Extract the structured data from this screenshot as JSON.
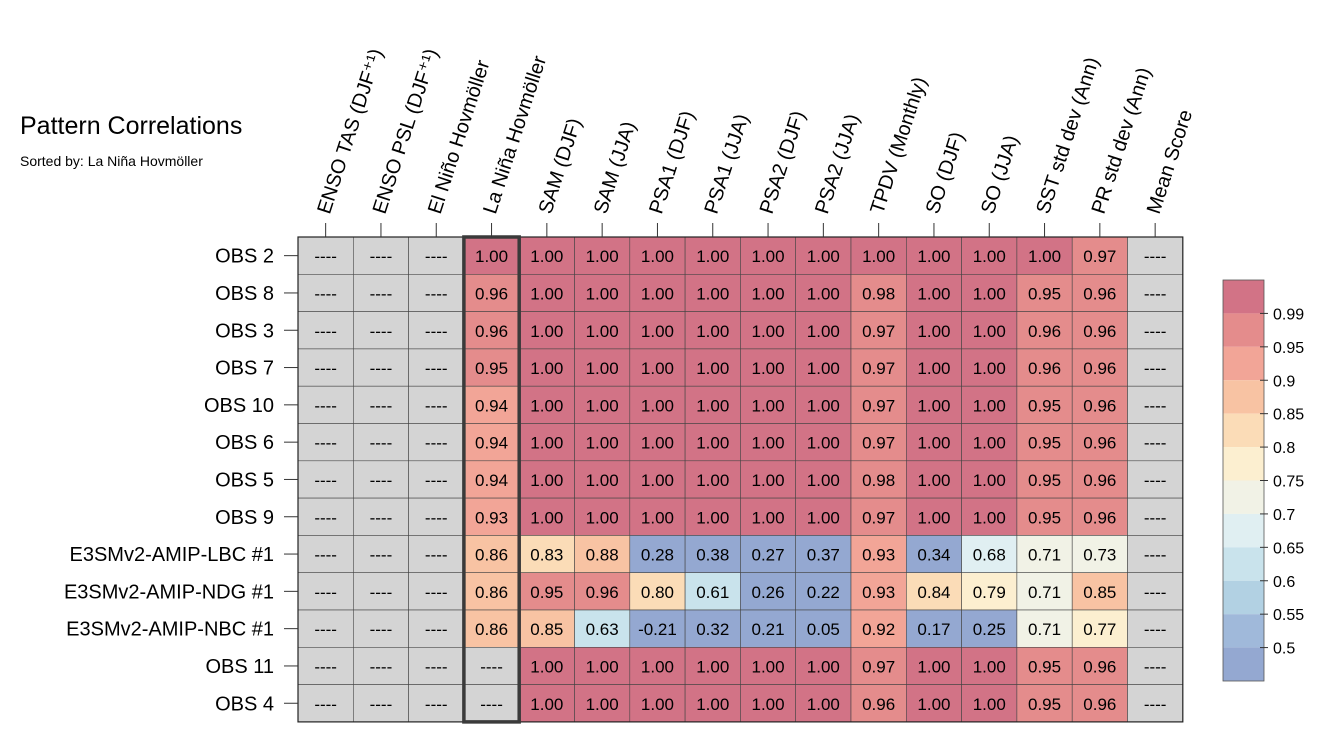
{
  "title": "Pattern Correlations",
  "subtitle": "Sorted by: La Niña Hovmöller",
  "chart_data": {
    "type": "heatmap",
    "title": "Pattern Correlations",
    "subtitle": "Sorted by: La Niña Hovmöller",
    "sorted_by": "La Niña Hovmöller",
    "missing_label": "----",
    "highlight_column": "La Niña Hovmöller",
    "columns": [
      "ENSO TAS (DJF⁺¹)",
      "ENSO PSL (DJF⁺¹)",
      "El Niño Hovmöller",
      "La Niña Hovmöller",
      "SAM (DJF)",
      "SAM (JJA)",
      "PSA1 (DJF)",
      "PSA1 (JJA)",
      "PSA2 (DJF)",
      "PSA2 (JJA)",
      "TPDV (Monthly)",
      "SO (DJF)",
      "SO (JJA)",
      "SST std dev (Ann)",
      "PR std dev (Ann)",
      "Mean Score"
    ],
    "rows": [
      {
        "name": "OBS 2",
        "values": [
          null,
          null,
          null,
          1.0,
          1.0,
          1.0,
          1.0,
          1.0,
          1.0,
          1.0,
          1.0,
          1.0,
          1.0,
          1.0,
          0.97,
          null
        ]
      },
      {
        "name": "OBS 8",
        "values": [
          null,
          null,
          null,
          0.96,
          1.0,
          1.0,
          1.0,
          1.0,
          1.0,
          1.0,
          0.98,
          1.0,
          1.0,
          0.95,
          0.96,
          null
        ]
      },
      {
        "name": "OBS 3",
        "values": [
          null,
          null,
          null,
          0.96,
          1.0,
          1.0,
          1.0,
          1.0,
          1.0,
          1.0,
          0.97,
          1.0,
          1.0,
          0.96,
          0.96,
          null
        ]
      },
      {
        "name": "OBS 7",
        "values": [
          null,
          null,
          null,
          0.95,
          1.0,
          1.0,
          1.0,
          1.0,
          1.0,
          1.0,
          0.97,
          1.0,
          1.0,
          0.96,
          0.96,
          null
        ]
      },
      {
        "name": "OBS 10",
        "values": [
          null,
          null,
          null,
          0.94,
          1.0,
          1.0,
          1.0,
          1.0,
          1.0,
          1.0,
          0.97,
          1.0,
          1.0,
          0.95,
          0.96,
          null
        ]
      },
      {
        "name": "OBS 6",
        "values": [
          null,
          null,
          null,
          0.94,
          1.0,
          1.0,
          1.0,
          1.0,
          1.0,
          1.0,
          0.97,
          1.0,
          1.0,
          0.95,
          0.96,
          null
        ]
      },
      {
        "name": "OBS 5",
        "values": [
          null,
          null,
          null,
          0.94,
          1.0,
          1.0,
          1.0,
          1.0,
          1.0,
          1.0,
          0.98,
          1.0,
          1.0,
          0.95,
          0.96,
          null
        ]
      },
      {
        "name": "OBS 9",
        "values": [
          null,
          null,
          null,
          0.93,
          1.0,
          1.0,
          1.0,
          1.0,
          1.0,
          1.0,
          0.97,
          1.0,
          1.0,
          0.95,
          0.96,
          null
        ]
      },
      {
        "name": "E3SMv2-AMIP-LBC #1",
        "values": [
          null,
          null,
          null,
          0.86,
          0.83,
          0.88,
          0.28,
          0.38,
          0.27,
          0.37,
          0.93,
          0.34,
          0.68,
          0.71,
          0.73,
          null
        ]
      },
      {
        "name": "E3SMv2-AMIP-NDG #1",
        "values": [
          null,
          null,
          null,
          0.86,
          0.95,
          0.96,
          0.8,
          0.61,
          0.26,
          0.22,
          0.93,
          0.84,
          0.79,
          0.71,
          0.85,
          null
        ]
      },
      {
        "name": "E3SMv2-AMIP-NBC #1",
        "values": [
          null,
          null,
          null,
          0.86,
          0.85,
          0.63,
          -0.21,
          0.32,
          0.21,
          0.05,
          0.92,
          0.17,
          0.25,
          0.71,
          0.77,
          null
        ]
      },
      {
        "name": "OBS 11",
        "values": [
          null,
          null,
          null,
          null,
          1.0,
          1.0,
          1.0,
          1.0,
          1.0,
          1.0,
          0.97,
          1.0,
          1.0,
          0.95,
          0.96,
          null
        ]
      },
      {
        "name": "OBS 4",
        "values": [
          null,
          null,
          null,
          null,
          1.0,
          1.0,
          1.0,
          1.0,
          1.0,
          1.0,
          0.96,
          1.0,
          1.0,
          0.95,
          0.96,
          null
        ]
      }
    ],
    "colorbar": {
      "ticks": [
        "0.99",
        "0.95",
        "0.9",
        "0.85",
        "0.8",
        "0.75",
        "0.7",
        "0.65",
        "0.6",
        "0.55",
        "0.5"
      ],
      "bins": [
        {
          "min": 0.99,
          "color": "#d27386"
        },
        {
          "min": 0.95,
          "color": "#e48c8c"
        },
        {
          "min": 0.9,
          "color": "#f2a597"
        },
        {
          "min": 0.85,
          "color": "#f8c3a3"
        },
        {
          "min": 0.8,
          "color": "#fbdcb7"
        },
        {
          "min": 0.75,
          "color": "#fcefd0"
        },
        {
          "min": 0.7,
          "color": "#f1f2e6"
        },
        {
          "min": 0.65,
          "color": "#e0eff2"
        },
        {
          "min": 0.6,
          "color": "#c9e3ec"
        },
        {
          "min": 0.55,
          "color": "#b2d1e3"
        },
        {
          "min": 0.5,
          "color": "#a0b9da"
        },
        {
          "min": -1.0,
          "color": "#94a8d1"
        }
      ],
      "missing_color": "#d4d4d4"
    }
  }
}
